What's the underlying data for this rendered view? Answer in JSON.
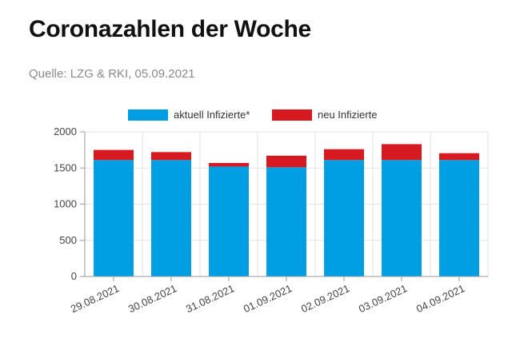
{
  "header": {
    "title": "Coronazahlen der Woche",
    "source": "Quelle: LZG & RKI, 05.09.2021"
  },
  "chart_data": {
    "type": "bar",
    "stacked": true,
    "categories": [
      "29.08.2021",
      "30.08.2021",
      "31.08.2021",
      "01.09.2021",
      "02.09.2021",
      "03.09.2021",
      "04.09.2021"
    ],
    "series": [
      {
        "name": "aktuell Infizierte*",
        "color": "#009FE3",
        "values": [
          1610,
          1610,
          1520,
          1510,
          1610,
          1610,
          1610
        ]
      },
      {
        "name": "neu Infizierte",
        "color": "#D71A21",
        "values": [
          140,
          110,
          50,
          160,
          150,
          220,
          95
        ]
      }
    ],
    "ylim": [
      0,
      2000
    ],
    "yticks": [
      0,
      500,
      1000,
      1500,
      2000
    ],
    "grid": true,
    "legend": "top-center",
    "xlabel": "",
    "ylabel": ""
  }
}
